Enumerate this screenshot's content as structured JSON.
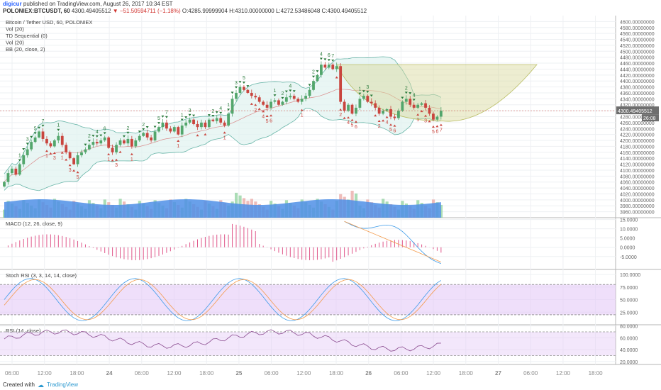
{
  "header": {
    "author": "digicur",
    "published": "published on TradingView.com, August 26, 2017 10:34 EST",
    "symbol": "POLONIEX:BTCUSDT, 60",
    "last": "4300.49405512",
    "change": "▼ −51.50594711 (−1.18%)",
    "ohlc": "O:4285.99999904 H:4310.00000000 L:4272.53486048 C:4300.49405512"
  },
  "legend": [
    "Bitcoin / Tether USD, 60, POLONIEX",
    "Vol (20)",
    "TD Sequential (0)",
    "Vol (20)",
    "BB (20, close, 2)"
  ],
  "price_label": "4300.49405512",
  "countdown": "26:08",
  "footer": {
    "created": "Created with",
    "brand": "TradingView"
  },
  "colors": {
    "up": "#53a66c",
    "down": "#c9453e",
    "bb_line": "#68b5a8",
    "bb_fill": "#dff2ef",
    "volume": "#4f8fe6",
    "arc_fill": "#d6d89a",
    "macd_hist": "#e0578a",
    "rsi_band": "#e4c9f7"
  },
  "chart_data": [
    {
      "type": "candlestick",
      "title": "Bitcoin / Tether USD, 60, POLONIEX",
      "ylim": [
        3940,
        4620
      ],
      "y_ticks": [
        3960,
        3980,
        4000,
        4020,
        4040,
        4060,
        4080,
        4100,
        4120,
        4140,
        4160,
        4180,
        4200,
        4220,
        4240,
        4260,
        4280,
        4300,
        4320,
        4340,
        4360,
        4380,
        4400,
        4420,
        4440,
        4460,
        4480,
        4500,
        4520,
        4540,
        4560,
        4580,
        4600
      ],
      "y_tick_labels": [
        "3960.00000000",
        "3980.00000000",
        "4000.00000000",
        "4020.00000000",
        "4040.00000000",
        "4060.00000000",
        "4080.00000000",
        "4100.00000000",
        "4120.00000000",
        "4140.00000000",
        "4160.00000000",
        "4180.00000000",
        "4200.00000000",
        "4220.00000000",
        "4240.00000000",
        "4260.00000000",
        "4280.00000000",
        "4300.00000000",
        "4320.00000000",
        "4340.00000000",
        "4360.00000000",
        "4380.00000000",
        "4400.00000000",
        "4420.00000000",
        "4440.00000000",
        "4460.00000000",
        "4480.00000000",
        "4500.00000000",
        "4520.00000000",
        "4540.00000000",
        "4560.00000000",
        "4580.00000000",
        "4600.00000000"
      ],
      "x_tick_labels": [
        "06:00",
        "12:00",
        "18:00",
        "24",
        "06:00",
        "12:00",
        "18:00",
        "25",
        "06:00",
        "12:00",
        "18:00",
        "26",
        "06:00",
        "12:00",
        "18:00",
        "27",
        "06:00",
        "12:00",
        "18:00"
      ],
      "close": [
        4060,
        4090,
        4105,
        4085,
        4120,
        4150,
        4170,
        4195,
        4210,
        4230,
        4205,
        4190,
        4180,
        4200,
        4215,
        4185,
        4160,
        4140,
        4120,
        4150,
        4160,
        4170,
        4185,
        4195,
        4190,
        4200,
        4210,
        4175,
        4160,
        4185,
        4200,
        4190,
        4205,
        4180,
        4200,
        4215,
        4225,
        4210,
        4200,
        4230,
        4245,
        4260,
        4240,
        4230,
        4245,
        4220,
        4250,
        4260,
        4270,
        4255,
        4245,
        4260,
        4245,
        4270,
        4265,
        4275,
        4260,
        4250,
        4290,
        4340,
        4360,
        4380,
        4370,
        4360,
        4350,
        4345,
        4330,
        4320,
        4310,
        4330,
        4335,
        4320,
        4330,
        4345,
        4350,
        4340,
        4330,
        4340,
        4350,
        4370,
        4400,
        4420,
        4455,
        4445,
        4455,
        4440,
        4450,
        4330,
        4300,
        4320,
        4290,
        4310,
        4340,
        4350,
        4330,
        4325,
        4310,
        4290,
        4300,
        4305,
        4280,
        4275,
        4300,
        4330,
        4340,
        4320,
        4310,
        4320,
        4325,
        4310,
        4290,
        4270,
        4280,
        4300
      ]
    },
    {
      "type": "bar",
      "title": "MACD (12, 26, close, 9)",
      "ylim": [
        -12,
        16
      ],
      "y_ticks": [
        15,
        10,
        5,
        0,
        -5
      ],
      "y_tick_labels": [
        "15.0000",
        "10.0000",
        "5.0000",
        "0.0000",
        "-5.0000"
      ]
    },
    {
      "type": "line",
      "title": "Stoch RSI (3, 3, 14, 14, close)",
      "ylim": [
        0,
        110
      ],
      "y_ticks": [
        100,
        75,
        50,
        25
      ],
      "y_tick_labels": [
        "100.0000",
        "75.0000",
        "50.0000",
        "25.0000"
      ]
    },
    {
      "type": "line",
      "title": "RSI (14, close)",
      "ylim": [
        15,
        82
      ],
      "y_ticks": [
        80,
        60,
        40,
        20
      ],
      "y_tick_labels": [
        "80.0000",
        "60.0000",
        "40.0000",
        "20.0000"
      ]
    }
  ]
}
